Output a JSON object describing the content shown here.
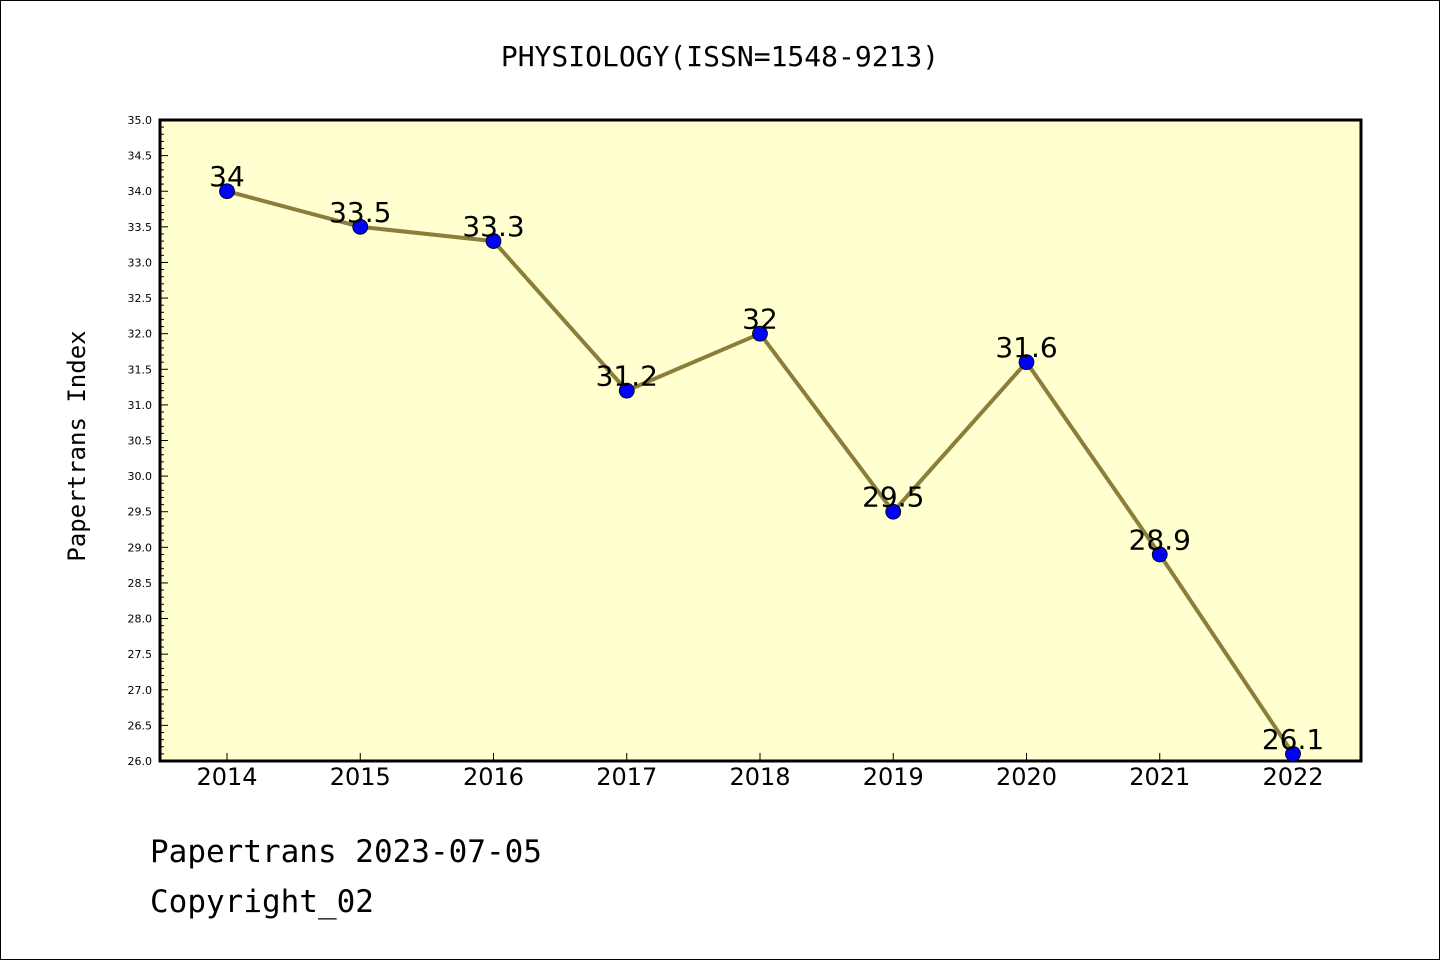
{
  "chart_data": {
    "type": "line",
    "title": "PHYSIOLOGY(ISSN=1548-9213)",
    "xlabel": "",
    "ylabel": "Papertrans Index",
    "categories": [
      "2014",
      "2015",
      "2016",
      "2017",
      "2018",
      "2019",
      "2020",
      "2021",
      "2022"
    ],
    "values": [
      34,
      33.5,
      33.3,
      31.2,
      32,
      29.5,
      31.6,
      28.9,
      26.1
    ],
    "data_labels": [
      "34",
      "33.5",
      "33.3",
      "31.2",
      "32",
      "29.5",
      "31.6",
      "28.9",
      "26.1"
    ],
    "ylim": [
      26.0,
      35.0
    ],
    "yticks": [
      "26.0",
      "26.5",
      "27.0",
      "27.5",
      "28.0",
      "28.5",
      "29.0",
      "29.5",
      "30.0",
      "30.5",
      "31.0",
      "31.5",
      "32.0",
      "32.5",
      "33.0",
      "33.5",
      "34.0",
      "34.5",
      "35.0"
    ],
    "grid": false,
    "legend": "none",
    "colors": {
      "plot_background": "#ffffd0",
      "line": "#8b7d3a",
      "marker": "#0000ff",
      "axis": "#000000"
    }
  },
  "footer": {
    "line1": "Papertrans 2023-07-05",
    "line2": "Copyright_02"
  }
}
